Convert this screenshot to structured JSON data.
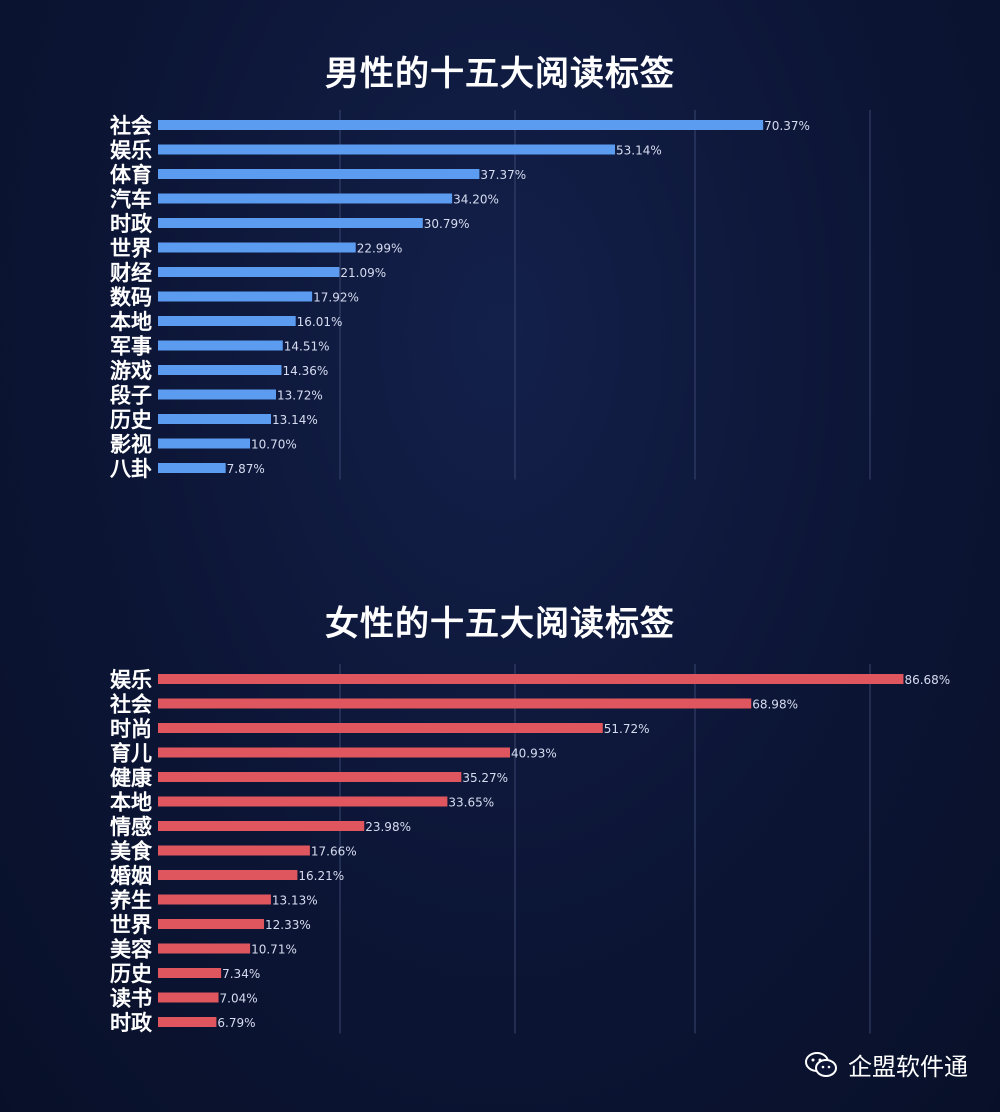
{
  "chart_data": [
    {
      "type": "bar",
      "orientation": "horizontal",
      "title": "男性的十五大阅读标签",
      "color": "#5b9cf0",
      "categories": [
        "社会",
        "娱乐",
        "体育",
        "汽车",
        "时政",
        "世界",
        "财经",
        "数码",
        "本地",
        "军事",
        "游戏",
        "段子",
        "历史",
        "影视",
        "八卦"
      ],
      "values": [
        70.37,
        53.14,
        37.37,
        34.2,
        30.79,
        22.99,
        21.09,
        17.92,
        16.01,
        14.51,
        14.36,
        13.72,
        13.14,
        10.7,
        7.87
      ],
      "labels": [
        "70.37%",
        "53.14%",
        "37.37%",
        "34.20%",
        "30.79%",
        "22.99%",
        "21.09%",
        "17.92%",
        "16.01%",
        "14.51%",
        "14.36%",
        "13.72%",
        "13.14%",
        "10.70%",
        "7.87%"
      ],
      "grid": true
    },
    {
      "type": "bar",
      "orientation": "horizontal",
      "title": "女性的十五大阅读标签",
      "color": "#e0565e",
      "categories": [
        "娱乐",
        "社会",
        "时尚",
        "育儿",
        "健康",
        "本地",
        "情感",
        "美食",
        "婚姻",
        "养生",
        "世界",
        "美容",
        "历史",
        "读书",
        "时政"
      ],
      "values": [
        86.68,
        68.98,
        51.72,
        40.93,
        35.27,
        33.65,
        23.98,
        17.66,
        16.21,
        13.13,
        12.33,
        10.71,
        7.34,
        7.04,
        6.79
      ],
      "labels": [
        "86.68%",
        "68.98%",
        "51.72%",
        "40.93%",
        "35.27%",
        "33.65%",
        "23.98%",
        "17.66%",
        "16.21%",
        "13.13%",
        "12.33%",
        "10.71%",
        "7.34%",
        "7.04%",
        "6.79%"
      ],
      "grid": true
    }
  ],
  "watermark": {
    "text": "企盟软件通",
    "icon": "wechat-icon"
  }
}
